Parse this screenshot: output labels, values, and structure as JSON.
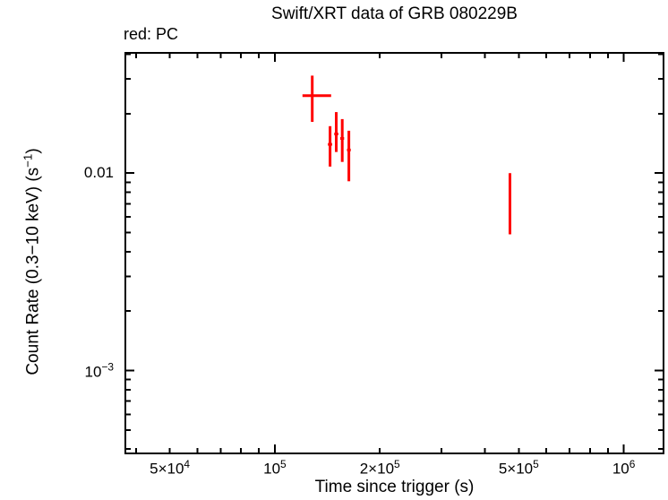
{
  "chart_data": {
    "type": "scatter",
    "title": "Swift/XRT data of GRB 080229B",
    "legend": "red: PC",
    "xlabel": "Time since trigger (s)",
    "ylabel_parts": {
      "pre": "Count Rate (0.3−10 keV) (s",
      "sup": "−1",
      "post": ")"
    },
    "xscale": "log",
    "yscale": "log",
    "xlim": [
      37300,
      1300000
    ],
    "ylim": [
      0.00038,
      0.0407
    ],
    "grid": false,
    "legend_position": "top-left",
    "background_color": "#ffffff",
    "frame_color": "#000000",
    "series": [
      {
        "name": "PC",
        "color": "#ff0000",
        "marker": "error-cross",
        "points": [
          {
            "t": 128000,
            "t_lo": 120000,
            "t_hi": 145000,
            "rate": 0.0247,
            "rate_lo": 0.0182,
            "rate_hi": 0.0312
          },
          {
            "t": 144000,
            "t_lo": 142000,
            "t_hi": 146000,
            "rate": 0.014,
            "rate_lo": 0.0108,
            "rate_hi": 0.0173
          },
          {
            "t": 150000,
            "t_lo": 148000,
            "t_hi": 152000,
            "rate": 0.0158,
            "rate_lo": 0.0128,
            "rate_hi": 0.0204
          },
          {
            "t": 156000,
            "t_lo": 154000,
            "t_hi": 158000,
            "rate": 0.015,
            "rate_lo": 0.0114,
            "rate_hi": 0.0188
          },
          {
            "t": 163000,
            "t_lo": 161000,
            "t_hi": 165000,
            "rate": 0.0131,
            "rate_lo": 0.0091,
            "rate_hi": 0.0164
          },
          {
            "t": 472000,
            "t_lo": 472000,
            "t_hi": 472000,
            "rate": 0.007,
            "rate_lo": 0.0049,
            "rate_hi": 0.01
          }
        ]
      }
    ],
    "x_ticks": [
      {
        "v": 40000,
        "major": false
      },
      {
        "v": 50000,
        "major": false,
        "label": {
          "base": "5×10",
          "exp": "4"
        }
      },
      {
        "v": 60000,
        "major": false
      },
      {
        "v": 70000,
        "major": false
      },
      {
        "v": 80000,
        "major": false
      },
      {
        "v": 90000,
        "major": false
      },
      {
        "v": 100000,
        "major": true,
        "label": {
          "base": "10",
          "exp": "5"
        }
      },
      {
        "v": 200000,
        "major": false,
        "label": {
          "base": "2×10",
          "exp": "5"
        }
      },
      {
        "v": 300000,
        "major": false
      },
      {
        "v": 400000,
        "major": false
      },
      {
        "v": 500000,
        "major": false,
        "label": {
          "base": "5×10",
          "exp": "5"
        }
      },
      {
        "v": 600000,
        "major": false
      },
      {
        "v": 700000,
        "major": false
      },
      {
        "v": 800000,
        "major": false
      },
      {
        "v": 900000,
        "major": false
      },
      {
        "v": 1000000,
        "major": true,
        "label": {
          "base": "10",
          "exp": "6"
        }
      }
    ],
    "y_ticks": [
      {
        "v": 0.04,
        "major": false
      },
      {
        "v": 0.03,
        "major": false
      },
      {
        "v": 0.02,
        "major": false
      },
      {
        "v": 0.01,
        "major": true,
        "label": {
          "base": "0.01"
        }
      },
      {
        "v": 0.009,
        "major": false
      },
      {
        "v": 0.008,
        "major": false
      },
      {
        "v": 0.007,
        "major": false
      },
      {
        "v": 0.006,
        "major": false
      },
      {
        "v": 0.005,
        "major": false
      },
      {
        "v": 0.004,
        "major": false
      },
      {
        "v": 0.003,
        "major": false
      },
      {
        "v": 0.002,
        "major": false
      },
      {
        "v": 0.001,
        "major": true,
        "label": {
          "base": "10",
          "exp": "−3"
        }
      },
      {
        "v": 0.0009,
        "major": false
      },
      {
        "v": 0.0008,
        "major": false
      },
      {
        "v": 0.0007,
        "major": false
      },
      {
        "v": 0.0006,
        "major": false
      },
      {
        "v": 0.0005,
        "major": false
      },
      {
        "v": 0.0004,
        "major": false
      }
    ]
  }
}
